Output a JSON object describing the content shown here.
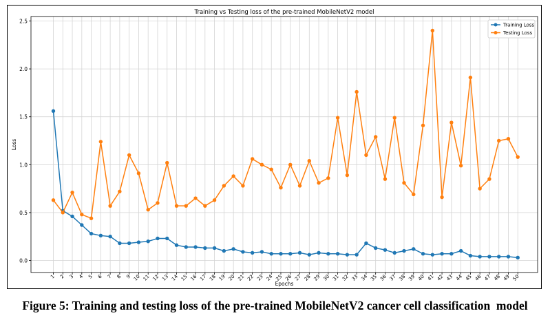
{
  "chart_data": {
    "type": "line",
    "title": "Training vs Testing loss of the pre-trained MobileNetV2 model",
    "xlabel": "Epochs",
    "ylabel": "Loss",
    "ylim": [
      0,
      2.5
    ],
    "yticks": [
      "0.0",
      "0.5",
      "1.0",
      "1.5",
      "2.0",
      "2.5"
    ],
    "x": [
      1,
      2,
      3,
      4,
      5,
      6,
      7,
      8,
      9,
      10,
      11,
      12,
      13,
      14,
      15,
      16,
      17,
      18,
      19,
      20,
      21,
      22,
      23,
      24,
      25,
      26,
      27,
      28,
      29,
      30,
      31,
      32,
      33,
      34,
      35,
      36,
      37,
      38,
      39,
      40,
      41,
      42,
      43,
      44,
      45,
      46,
      47,
      48,
      49,
      50
    ],
    "grid": true,
    "legend_position": "top-right",
    "series": [
      {
        "name": "Training Loss",
        "color": "#1f77b4",
        "values": [
          1.56,
          0.52,
          0.46,
          0.37,
          0.28,
          0.26,
          0.25,
          0.18,
          0.18,
          0.19,
          0.2,
          0.23,
          0.23,
          0.16,
          0.14,
          0.14,
          0.13,
          0.13,
          0.1,
          0.12,
          0.09,
          0.08,
          0.09,
          0.07,
          0.07,
          0.07,
          0.08,
          0.06,
          0.08,
          0.07,
          0.07,
          0.06,
          0.06,
          0.18,
          0.13,
          0.11,
          0.08,
          0.1,
          0.12,
          0.07,
          0.06,
          0.07,
          0.07,
          0.1,
          0.05,
          0.04,
          0.04,
          0.04,
          0.04,
          0.03
        ]
      },
      {
        "name": "Testing Loss",
        "color": "#ff7f0e",
        "values": [
          0.63,
          0.5,
          0.71,
          0.48,
          0.44,
          1.24,
          0.57,
          0.72,
          1.1,
          0.91,
          0.53,
          0.6,
          1.02,
          0.57,
          0.57,
          0.65,
          0.57,
          0.63,
          0.78,
          0.88,
          0.78,
          1.06,
          1.0,
          0.95,
          0.76,
          1.0,
          0.78,
          1.04,
          0.81,
          0.86,
          1.49,
          0.89,
          1.76,
          1.1,
          1.29,
          0.85,
          1.49,
          0.81,
          0.69,
          1.41,
          2.4,
          0.66,
          1.44,
          0.99,
          1.91,
          0.75,
          0.85,
          1.25,
          1.27,
          1.08
        ]
      }
    ]
  },
  "caption": "Figure 5: Training and testing loss of the pre-trained MobileNetV2 cancer cell classification  model"
}
